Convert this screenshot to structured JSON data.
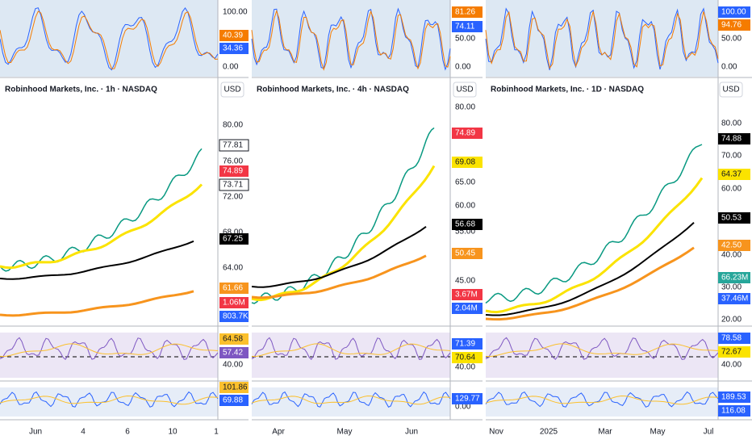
{
  "currency": "USD",
  "panels": [
    {
      "title": "Robinhood Markets, Inc. · 1h · NASDAQ",
      "stoch": {
        "ticks": [
          "100.00",
          "0.00"
        ],
        "badges": [
          {
            "label": "40.39",
            "color": "#f57c00"
          },
          {
            "label": "34.36",
            "color": "#2962ff"
          }
        ]
      },
      "price": {
        "ticks": [
          "80.00",
          "76.00",
          "72.00",
          "68.00",
          "64.00"
        ],
        "badges": [
          {
            "label": "77.81",
            "color": "#ffffff"
          },
          {
            "label": "74.89",
            "color": "#f23645"
          },
          {
            "label": "73.71",
            "color": "#ffffff"
          },
          {
            "label": "67.25",
            "color": "#000000"
          },
          {
            "label": "61.66",
            "color": "#f7941d"
          },
          {
            "label": "1.06M",
            "color": "#f23645"
          },
          {
            "label": "803.7K",
            "color": "#2962ff"
          }
        ]
      },
      "rsi": {
        "ticks": [
          "40.00"
        ],
        "badges": [
          {
            "label": "64.58",
            "color": "#fbc02d"
          },
          {
            "label": "57.42",
            "color": "#7e57c2"
          }
        ]
      },
      "cci": {
        "ticks": [],
        "badges": [
          {
            "label": "101.86",
            "color": "#fbc02d"
          },
          {
            "label": "69.88",
            "color": "#2962ff"
          }
        ]
      },
      "xlabels": [
        "Jun",
        "4",
        "6",
        "10",
        "1"
      ]
    },
    {
      "title": "Robinhood Markets, Inc. · 4h · NASDAQ",
      "stoch": {
        "ticks": [
          "50.00",
          "0.00"
        ],
        "badges": [
          {
            "label": "81.26",
            "color": "#f57c00"
          },
          {
            "label": "74.11",
            "color": "#2962ff"
          }
        ]
      },
      "price": {
        "ticks": [
          "80.00",
          "65.00",
          "60.00",
          "55.00",
          "45.00"
        ],
        "badges": [
          {
            "label": "74.89",
            "color": "#f23645"
          },
          {
            "label": "69.08",
            "color": "#fbe300"
          },
          {
            "label": "56.68",
            "color": "#000000"
          },
          {
            "label": "50.45",
            "color": "#f7941d"
          },
          {
            "label": "3.67M",
            "color": "#f23645"
          },
          {
            "label": "2.04M",
            "color": "#2962ff"
          }
        ]
      },
      "rsi": {
        "ticks": [
          "40.00"
        ],
        "badges": [
          {
            "label": "71.39",
            "color": "#2962ff"
          },
          {
            "label": "70.64",
            "color": "#fbe300"
          }
        ]
      },
      "cci": {
        "ticks": [
          "0.00"
        ],
        "badges": [
          {
            "label": "129.77",
            "color": "#2962ff"
          }
        ]
      },
      "xlabels": [
        "Apr",
        "May",
        "Jun"
      ]
    },
    {
      "title": "Robinhood Markets, Inc. · 1D · NASDAQ",
      "stoch": {
        "ticks": [
          "50.00",
          "0.00"
        ],
        "badges": [
          {
            "label": "100.00",
            "color": "#2962ff"
          },
          {
            "label": "94.76",
            "color": "#f57c00"
          }
        ]
      },
      "price": {
        "ticks": [
          "80.00",
          "70.00",
          "60.00",
          "40.00",
          "30.00",
          "20.00"
        ],
        "badges": [
          {
            "label": "74.88",
            "color": "#000000"
          },
          {
            "label": "64.37",
            "color": "#fbe300"
          },
          {
            "label": "50.53",
            "color": "#000000"
          },
          {
            "label": "42.50",
            "color": "#f7941d"
          },
          {
            "label": "66.23M",
            "color": "#26a69a"
          },
          {
            "label": "37.46M",
            "color": "#2962ff"
          }
        ]
      },
      "rsi": {
        "ticks": [
          "40.00"
        ],
        "badges": [
          {
            "label": "78.58",
            "color": "#2962ff"
          },
          {
            "label": "72.67",
            "color": "#fbe300"
          }
        ]
      },
      "cci": {
        "ticks": [],
        "badges": [
          {
            "label": "189.53",
            "color": "#2962ff"
          },
          {
            "label": "116.08",
            "color": "#2962ff"
          }
        ]
      },
      "xlabels": [
        "Nov",
        "2025",
        "Mar",
        "May",
        "Jul"
      ]
    }
  ]
}
